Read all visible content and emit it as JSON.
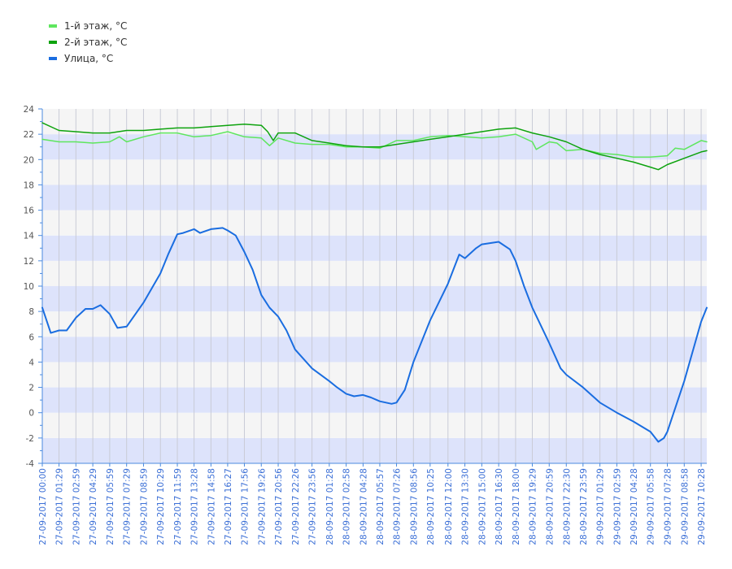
{
  "chart_data": {
    "type": "line",
    "title": "",
    "xlabel": "",
    "ylabel": "",
    "ylim": [
      -4,
      24
    ],
    "y_ticks": [
      -4,
      -2,
      0,
      2,
      4,
      6,
      8,
      10,
      12,
      14,
      16,
      18,
      20,
      22,
      24
    ],
    "grid": true,
    "legend_position": "top-left",
    "x_range": [
      "27-09-2017 00:00",
      "29-09-2017 10:58"
    ],
    "x_tick_labels": [
      "27-09-2017 00:00",
      "27-09-2017 01:29",
      "27-09-2017 02:59",
      "27-09-2017 04:29",
      "27-09-2017 05:59",
      "27-09-2017 07:29",
      "27-09-2017 08:59",
      "27-09-2017 10:29",
      "27-09-2017 11:59",
      "27-09-2017 13:28",
      "27-09-2017 14:58",
      "27-09-2017 16:27",
      "27-09-2017 17:56",
      "27-09-2017 19:26",
      "27-09-2017 20:56",
      "27-09-2017 22:26",
      "27-09-2017 23:56",
      "28-09-2017 01:28",
      "28-09-2017 02:58",
      "28-09-2017 04:28",
      "28-09-2017 05:57",
      "28-09-2017 07:26",
      "28-09-2017 08:56",
      "28-09-2017 10:25",
      "28-09-2017 12:00",
      "28-09-2017 13:30",
      "28-09-2017 15:00",
      "28-09-2017 16:30",
      "28-09-2017 18:00",
      "28-09-2017 19:29",
      "28-09-2017 20:59",
      "28-09-2017 22:30",
      "28-09-2017 23:59",
      "29-09-2017 01:29",
      "29-09-2017 02:59",
      "29-09-2017 04:28",
      "29-09-2017 05:58",
      "29-09-2017 07:28",
      "29-09-2017 08:58",
      "29-09-2017 10:28"
    ],
    "series": [
      {
        "name": "1-й этаж, °C",
        "color": "#5ee65e",
        "points": [
          [
            "27-09-2017 00:00",
            21.6
          ],
          [
            "27-09-2017 01:29",
            21.4
          ],
          [
            "27-09-2017 02:59",
            21.4
          ],
          [
            "27-09-2017 04:29",
            21.3
          ],
          [
            "27-09-2017 05:59",
            21.4
          ],
          [
            "27-09-2017 06:50",
            21.8
          ],
          [
            "27-09-2017 07:29",
            21.4
          ],
          [
            "27-09-2017 08:59",
            21.8
          ],
          [
            "27-09-2017 10:29",
            22.1
          ],
          [
            "27-09-2017 11:59",
            22.1
          ],
          [
            "27-09-2017 13:28",
            21.8
          ],
          [
            "27-09-2017 14:58",
            21.9
          ],
          [
            "27-09-2017 16:27",
            22.2
          ],
          [
            "27-09-2017 17:56",
            21.8
          ],
          [
            "27-09-2017 19:26",
            21.7
          ],
          [
            "27-09-2017 20:10",
            21.1
          ],
          [
            "27-09-2017 20:56",
            21.7
          ],
          [
            "27-09-2017 22:26",
            21.3
          ],
          [
            "27-09-2017 23:56",
            21.2
          ],
          [
            "28-09-2017 01:28",
            21.2
          ],
          [
            "28-09-2017 02:58",
            21.0
          ],
          [
            "28-09-2017 04:28",
            21.0
          ],
          [
            "28-09-2017 05:57",
            20.9
          ],
          [
            "28-09-2017 07:26",
            21.5
          ],
          [
            "28-09-2017 08:56",
            21.5
          ],
          [
            "28-09-2017 10:25",
            21.8
          ],
          [
            "28-09-2017 12:00",
            21.9
          ],
          [
            "28-09-2017 13:30",
            21.8
          ],
          [
            "28-09-2017 15:00",
            21.7
          ],
          [
            "28-09-2017 16:30",
            21.8
          ],
          [
            "28-09-2017 18:00",
            22.0
          ],
          [
            "28-09-2017 19:29",
            21.4
          ],
          [
            "28-09-2017 19:50",
            20.8
          ],
          [
            "28-09-2017 20:59",
            21.4
          ],
          [
            "28-09-2017 21:40",
            21.3
          ],
          [
            "28-09-2017 22:30",
            20.7
          ],
          [
            "28-09-2017 23:59",
            20.8
          ],
          [
            "29-09-2017 01:29",
            20.5
          ],
          [
            "29-09-2017 02:59",
            20.4
          ],
          [
            "29-09-2017 04:28",
            20.2
          ],
          [
            "29-09-2017 05:58",
            20.2
          ],
          [
            "29-09-2017 07:28",
            20.3
          ],
          [
            "29-09-2017 08:10",
            20.9
          ],
          [
            "29-09-2017 08:58",
            20.8
          ],
          [
            "29-09-2017 10:28",
            21.5
          ],
          [
            "29-09-2017 10:58",
            21.4
          ]
        ]
      },
      {
        "name": "2-й этаж, °C",
        "color": "#0ea30e",
        "points": [
          [
            "27-09-2017 00:00",
            22.9
          ],
          [
            "27-09-2017 01:29",
            22.3
          ],
          [
            "27-09-2017 02:59",
            22.2
          ],
          [
            "27-09-2017 04:29",
            22.1
          ],
          [
            "27-09-2017 05:59",
            22.1
          ],
          [
            "27-09-2017 07:29",
            22.3
          ],
          [
            "27-09-2017 08:59",
            22.3
          ],
          [
            "27-09-2017 10:29",
            22.4
          ],
          [
            "27-09-2017 11:59",
            22.5
          ],
          [
            "27-09-2017 13:28",
            22.5
          ],
          [
            "27-09-2017 14:58",
            22.6
          ],
          [
            "27-09-2017 16:27",
            22.7
          ],
          [
            "27-09-2017 17:56",
            22.8
          ],
          [
            "27-09-2017 19:26",
            22.7
          ],
          [
            "27-09-2017 20:00",
            22.2
          ],
          [
            "27-09-2017 20:30",
            21.5
          ],
          [
            "27-09-2017 20:56",
            22.1
          ],
          [
            "27-09-2017 22:26",
            22.1
          ],
          [
            "27-09-2017 23:56",
            21.5
          ],
          [
            "28-09-2017 01:28",
            21.3
          ],
          [
            "28-09-2017 02:58",
            21.1
          ],
          [
            "28-09-2017 04:28",
            21.0
          ],
          [
            "28-09-2017 05:57",
            21.0
          ],
          [
            "28-09-2017 07:26",
            21.2
          ],
          [
            "28-09-2017 08:56",
            21.4
          ],
          [
            "28-09-2017 10:25",
            21.6
          ],
          [
            "28-09-2017 12:00",
            21.8
          ],
          [
            "28-09-2017 13:30",
            22.0
          ],
          [
            "28-09-2017 15:00",
            22.2
          ],
          [
            "28-09-2017 16:30",
            22.4
          ],
          [
            "28-09-2017 18:00",
            22.5
          ],
          [
            "28-09-2017 19:29",
            22.1
          ],
          [
            "28-09-2017 20:59",
            21.8
          ],
          [
            "28-09-2017 22:30",
            21.4
          ],
          [
            "28-09-2017 23:59",
            20.8
          ],
          [
            "29-09-2017 01:29",
            20.4
          ],
          [
            "29-09-2017 02:59",
            20.1
          ],
          [
            "29-09-2017 04:28",
            19.8
          ],
          [
            "29-09-2017 05:58",
            19.4
          ],
          [
            "29-09-2017 06:40",
            19.2
          ],
          [
            "29-09-2017 07:28",
            19.6
          ],
          [
            "29-09-2017 08:58",
            20.1
          ],
          [
            "29-09-2017 10:28",
            20.6
          ],
          [
            "29-09-2017 10:58",
            20.7
          ]
        ]
      },
      {
        "name": "Улица, °C",
        "color": "#1a6de0",
        "points": [
          [
            "27-09-2017 00:00",
            8.3
          ],
          [
            "27-09-2017 00:45",
            6.3
          ],
          [
            "27-09-2017 01:29",
            6.5
          ],
          [
            "27-09-2017 02:10",
            6.5
          ],
          [
            "27-09-2017 02:59",
            7.5
          ],
          [
            "27-09-2017 03:50",
            8.2
          ],
          [
            "27-09-2017 04:29",
            8.2
          ],
          [
            "27-09-2017 05:10",
            8.5
          ],
          [
            "27-09-2017 05:59",
            7.8
          ],
          [
            "27-09-2017 06:40",
            6.7
          ],
          [
            "27-09-2017 07:29",
            6.8
          ],
          [
            "27-09-2017 08:59",
            8.7
          ],
          [
            "27-09-2017 10:29",
            11.0
          ],
          [
            "27-09-2017 11:10",
            12.5
          ],
          [
            "27-09-2017 11:59",
            14.1
          ],
          [
            "27-09-2017 12:30",
            14.2
          ],
          [
            "27-09-2017 13:28",
            14.5
          ],
          [
            "27-09-2017 14:00",
            14.2
          ],
          [
            "27-09-2017 14:58",
            14.5
          ],
          [
            "27-09-2017 16:00",
            14.6
          ],
          [
            "27-09-2017 16:27",
            14.4
          ],
          [
            "27-09-2017 17:10",
            14.0
          ],
          [
            "27-09-2017 17:56",
            12.7
          ],
          [
            "27-09-2017 18:40",
            11.3
          ],
          [
            "27-09-2017 19:26",
            9.3
          ],
          [
            "27-09-2017 20:10",
            8.3
          ],
          [
            "27-09-2017 20:56",
            7.6
          ],
          [
            "27-09-2017 21:40",
            6.5
          ],
          [
            "27-09-2017 22:26",
            5.0
          ],
          [
            "27-09-2017 23:56",
            3.5
          ],
          [
            "28-09-2017 01:28",
            2.5
          ],
          [
            "28-09-2017 02:10",
            2.0
          ],
          [
            "28-09-2017 02:58",
            1.5
          ],
          [
            "28-09-2017 03:40",
            1.3
          ],
          [
            "28-09-2017 04:28",
            1.4
          ],
          [
            "28-09-2017 05:10",
            1.2
          ],
          [
            "28-09-2017 05:57",
            0.9
          ],
          [
            "28-09-2017 07:00",
            0.7
          ],
          [
            "28-09-2017 07:26",
            0.8
          ],
          [
            "28-09-2017 08:10",
            1.8
          ],
          [
            "28-09-2017 08:56",
            4.0
          ],
          [
            "28-09-2017 10:25",
            7.3
          ],
          [
            "28-09-2017 12:00",
            10.2
          ],
          [
            "28-09-2017 13:00",
            12.5
          ],
          [
            "28-09-2017 13:30",
            12.2
          ],
          [
            "28-09-2017 14:30",
            13.0
          ],
          [
            "28-09-2017 15:00",
            13.3
          ],
          [
            "28-09-2017 16:30",
            13.5
          ],
          [
            "28-09-2017 17:30",
            12.9
          ],
          [
            "28-09-2017 18:00",
            12.0
          ],
          [
            "28-09-2017 18:45",
            10.0
          ],
          [
            "28-09-2017 19:29",
            8.3
          ],
          [
            "28-09-2017 20:59",
            5.5
          ],
          [
            "28-09-2017 22:00",
            3.5
          ],
          [
            "28-09-2017 22:30",
            3.0
          ],
          [
            "28-09-2017 23:59",
            2.0
          ],
          [
            "29-09-2017 01:29",
            0.8
          ],
          [
            "29-09-2017 02:59",
            0.0
          ],
          [
            "29-09-2017 04:28",
            -0.7
          ],
          [
            "29-09-2017 05:58",
            -1.5
          ],
          [
            "29-09-2017 06:40",
            -2.3
          ],
          [
            "29-09-2017 07:10",
            -2.0
          ],
          [
            "29-09-2017 07:28",
            -1.5
          ],
          [
            "29-09-2017 08:58",
            2.5
          ],
          [
            "29-09-2017 10:28",
            7.2
          ],
          [
            "29-09-2017 10:58",
            8.3
          ]
        ]
      }
    ]
  }
}
